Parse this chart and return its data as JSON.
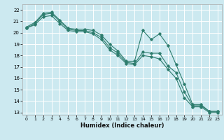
{
  "xlabel": "Humidex (Indice chaleur)",
  "bg_color": "#cce9f0",
  "grid_color": "#ffffff",
  "line_color": "#2e7d6e",
  "xlim": [
    -0.5,
    23.5
  ],
  "ylim": [
    12.8,
    22.5
  ],
  "yticks": [
    13,
    14,
    15,
    16,
    17,
    18,
    19,
    20,
    21,
    22
  ],
  "xticks": [
    0,
    1,
    2,
    3,
    4,
    5,
    6,
    7,
    8,
    9,
    10,
    11,
    12,
    13,
    14,
    15,
    16,
    17,
    18,
    19,
    20,
    21,
    22,
    23
  ],
  "series1_x": [
    0,
    1,
    2,
    3,
    4,
    5,
    6,
    7,
    8,
    9,
    10,
    11,
    12,
    13,
    14,
    15,
    16,
    17,
    18,
    19,
    20,
    21,
    22,
    23
  ],
  "series1_y": [
    20.5,
    20.9,
    21.7,
    21.8,
    21.1,
    20.4,
    20.3,
    20.3,
    20.2,
    19.8,
    19.0,
    18.4,
    17.5,
    17.5,
    20.2,
    19.4,
    19.9,
    18.9,
    17.2,
    15.5,
    13.7,
    13.7,
    13.1,
    13.1
  ],
  "series2_x": [
    0,
    1,
    2,
    3,
    4,
    5,
    6,
    7,
    8,
    9,
    10,
    11,
    12,
    13,
    14,
    15,
    16,
    17,
    18,
    19,
    20,
    21,
    22,
    23
  ],
  "series2_y": [
    20.4,
    20.8,
    21.6,
    21.7,
    21.0,
    20.3,
    20.2,
    20.2,
    20.0,
    19.6,
    18.7,
    18.2,
    17.4,
    17.3,
    18.3,
    18.2,
    18.2,
    17.1,
    16.5,
    14.8,
    13.6,
    13.6,
    13.1,
    13.1
  ],
  "series3_x": [
    0,
    1,
    2,
    3,
    4,
    5,
    6,
    7,
    8,
    9,
    10,
    11,
    12,
    13,
    14,
    15,
    16,
    17,
    18,
    19,
    20,
    21,
    22,
    23
  ],
  "series3_y": [
    20.4,
    20.7,
    21.4,
    21.5,
    20.8,
    20.2,
    20.1,
    20.1,
    19.9,
    19.4,
    18.5,
    18.0,
    17.3,
    17.2,
    18.0,
    17.9,
    17.7,
    16.8,
    16.0,
    14.3,
    13.5,
    13.5,
    13.0,
    13.0
  ]
}
